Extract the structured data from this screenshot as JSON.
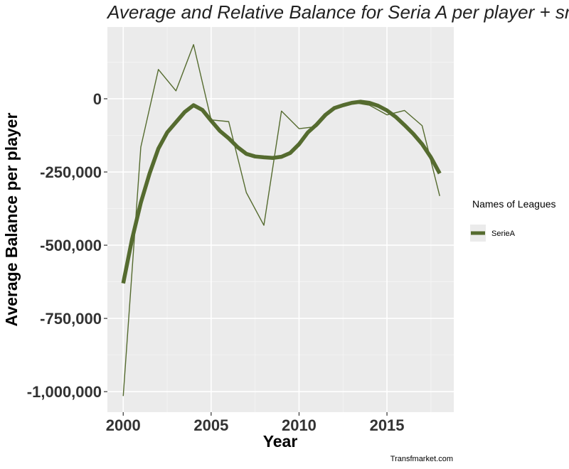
{
  "chart_data": {
    "type": "line",
    "title": "Average and Relative  Balance for Seria A  per player + smooth",
    "xlabel": "Year",
    "ylabel": "Average Balance  per player",
    "xlim": [
      1999.1,
      2018.8
    ],
    "ylim": [
      -1070000,
      245000
    ],
    "x_ticks": [
      2000,
      2005,
      2010,
      2015
    ],
    "x_tick_labels": [
      "2000",
      "2005",
      "2010",
      "2015"
    ],
    "y_ticks": [
      0,
      -250000,
      -500000,
      -750000,
      -1000000
    ],
    "y_tick_labels": [
      "0",
      "-250,000",
      "-500,000",
      "-750,000",
      "-1,000,000"
    ],
    "grid": true,
    "legend_position": "right",
    "legend": {
      "title": "Names of Leagues",
      "entries": [
        {
          "name": "SerieA",
          "color": "#556b2f"
        }
      ]
    },
    "series": [
      {
        "name": "SerieA",
        "kind": "raw",
        "color": "#556b2f",
        "x": [
          2000,
          2001,
          2002,
          2003,
          2004,
          2005,
          2006,
          2007,
          2008,
          2009,
          2010,
          2011,
          2012,
          2013,
          2014,
          2015,
          2016,
          2017,
          2018
        ],
        "values": [
          -1015000,
          -165000,
          100000,
          27000,
          185000,
          -72000,
          -78000,
          -320000,
          -432000,
          -42000,
          -102000,
          -95000,
          -30000,
          -12000,
          -22000,
          -55000,
          -40000,
          -92000,
          -332000
        ]
      },
      {
        "name": "SerieA",
        "kind": "smooth",
        "color": "#556b2f",
        "x": [
          2000,
          2000.5,
          2001,
          2001.5,
          2002,
          2002.5,
          2003,
          2003.5,
          2004,
          2004.5,
          2005,
          2005.5,
          2006,
          2006.5,
          2007,
          2007.5,
          2008,
          2008.5,
          2009,
          2009.5,
          2010,
          2010.5,
          2011,
          2011.5,
          2012,
          2012.5,
          2013,
          2013.5,
          2014,
          2014.5,
          2015,
          2015.5,
          2016,
          2016.5,
          2017,
          2017.5,
          2018
        ],
        "values": [
          -630000,
          -480000,
          -355000,
          -255000,
          -170000,
          -115000,
          -80000,
          -45000,
          -22000,
          -38000,
          -75000,
          -110000,
          -135000,
          -165000,
          -188000,
          -197000,
          -200000,
          -202000,
          -198000,
          -185000,
          -155000,
          -115000,
          -88000,
          -55000,
          -32000,
          -22000,
          -14000,
          -10000,
          -14000,
          -24000,
          -40000,
          -62000,
          -90000,
          -120000,
          -155000,
          -200000,
          -255000
        ]
      }
    ],
    "caption": "Transfmarket.com"
  }
}
